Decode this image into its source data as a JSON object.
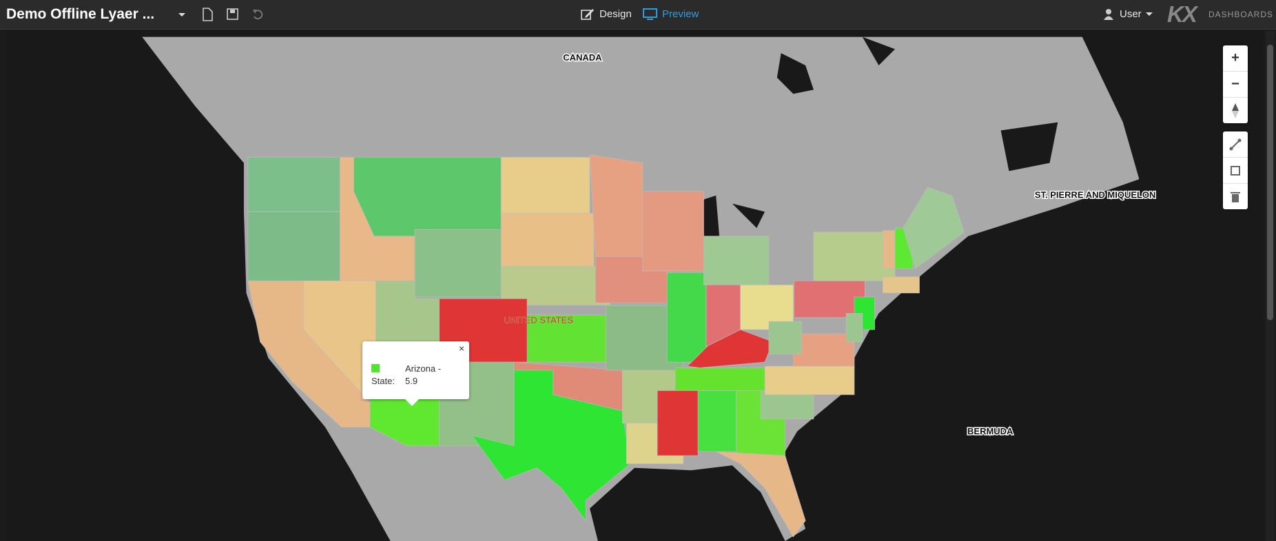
{
  "header": {
    "title": "Demo Offline Lyaer ...",
    "design": "Design",
    "preview": "Preview",
    "user": "User",
    "logo": "KX",
    "logo_sub": "DASHBOARDS"
  },
  "map": {
    "labels": [
      "CANADA",
      "UNITED STATES",
      "ST. PIERRE AND MIQUELON",
      "BERMUDA"
    ],
    "controls": {
      "zoom_in": "+",
      "zoom_out": "−"
    }
  },
  "tooltip": {
    "name": "Arizona -",
    "field": "State:",
    "value": 5.9,
    "close": "×"
  }
}
